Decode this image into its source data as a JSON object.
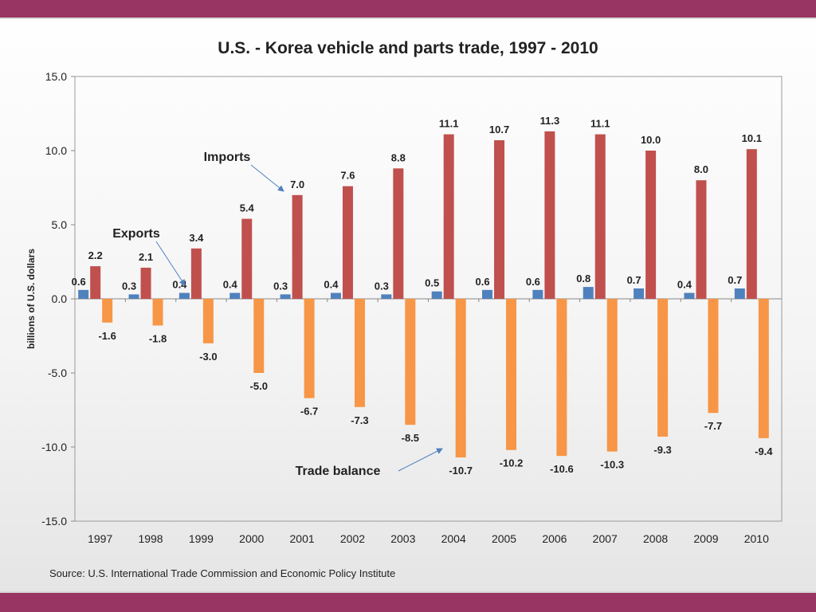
{
  "chart_data": {
    "type": "bar",
    "title": "U.S. - Korea vehicle and parts trade, 1997 - 2010",
    "ylabel": "billions of U.S. dollars",
    "xlabel": "",
    "ylim": [
      -15.0,
      15.0
    ],
    "yticks": [
      "15.0",
      "10.0",
      "5.0",
      "0.0",
      "-5.0",
      "-10.0",
      "-15.0"
    ],
    "ytick_values": [
      15,
      10,
      5,
      0,
      -5,
      -10,
      -15
    ],
    "categories": [
      "1997",
      "1998",
      "1999",
      "2000",
      "2001",
      "2002",
      "2003",
      "2004",
      "2005",
      "2006",
      "2007",
      "2008",
      "2009",
      "2010"
    ],
    "series": [
      {
        "name": "Exports",
        "color": "#4f81bd",
        "values": [
          0.6,
          0.3,
          0.4,
          0.4,
          0.3,
          0.4,
          0.3,
          0.5,
          0.6,
          0.6,
          0.8,
          0.7,
          0.4,
          0.7
        ],
        "labels": [
          "0.6",
          "0.3",
          "0.4",
          "0.4",
          "0.3",
          "0.4",
          "0.3",
          "0.5",
          "0.6",
          "0.6",
          "0.8",
          "0.7",
          "0.4",
          "0.7"
        ]
      },
      {
        "name": "Imports",
        "color": "#c0504d",
        "values": [
          2.2,
          2.1,
          3.4,
          5.4,
          7.0,
          7.6,
          8.8,
          11.1,
          10.7,
          11.3,
          11.1,
          10.0,
          8.0,
          10.1
        ],
        "labels": [
          "2.2",
          "2.1",
          "3.4",
          "5.4",
          "7.0",
          "7.6",
          "8.8",
          "11.1",
          "10.7",
          "11.3",
          "11.1",
          "10.0",
          "8.0",
          "10.1"
        ]
      },
      {
        "name": "Trade balance",
        "color": "#f79646",
        "values": [
          -1.6,
          -1.8,
          -3.0,
          -5.0,
          -6.7,
          -7.3,
          -8.5,
          -10.7,
          -10.2,
          -10.6,
          -10.3,
          -9.3,
          -7.7,
          -9.4
        ],
        "labels": [
          "-1.6",
          "-1.8",
          "-3.0",
          "-5.0",
          "-6.7",
          "-7.3",
          "-8.5",
          "-10.7",
          "-10.2",
          "-10.6",
          "-10.3",
          "-9.3",
          "-7.7",
          "-9.4"
        ]
      }
    ],
    "annotations": [
      {
        "text": "Imports",
        "series": "Imports",
        "points_to": "2001"
      },
      {
        "text": "Exports",
        "series": "Exports",
        "points_to": "1999"
      },
      {
        "text": "Trade balance",
        "series": "Trade balance",
        "points_to": "2004"
      }
    ],
    "grid": false,
    "accent_arrow_color": "#4f81bd",
    "axis_color": "#888888"
  },
  "source_text": "Source:  U.S. International Trade Commission and Economic Policy Institute"
}
